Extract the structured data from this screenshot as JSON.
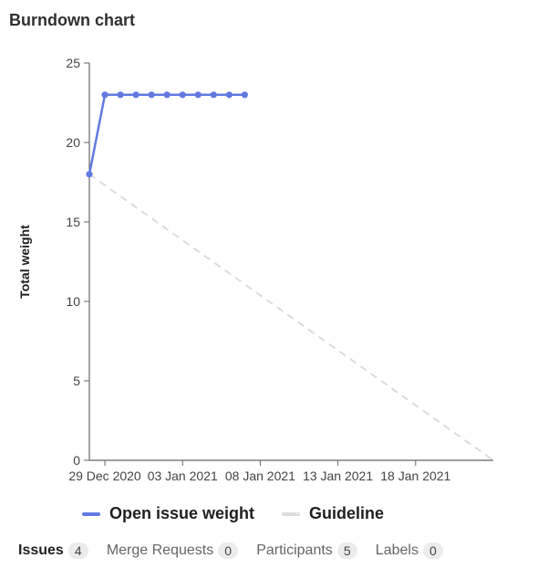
{
  "header": {
    "title": "Burndown chart"
  },
  "colors": {
    "series": "#617ae2",
    "guideline": "#dcdcdc",
    "axis": "#666666"
  },
  "chart_data": {
    "type": "line",
    "title": "Burndown chart",
    "xlabel": "",
    "ylabel": "Total weight",
    "xlim": [
      "2020-12-28",
      "2021-01-23"
    ],
    "ylim": [
      0,
      25
    ],
    "y_ticks": [
      0,
      5,
      10,
      15,
      20,
      25
    ],
    "x_ticks": [
      {
        "date": "2020-12-29",
        "label": "29 Dec 2020"
      },
      {
        "date": "2021-01-03",
        "label": "03 Jan 2021"
      },
      {
        "date": "2021-01-08",
        "label": "08 Jan 2021"
      },
      {
        "date": "2021-01-13",
        "label": "13 Jan 2021"
      },
      {
        "date": "2021-01-18",
        "label": "18 Jan 2021"
      }
    ],
    "grid": false,
    "legend": "bottom",
    "series": [
      {
        "name": "Open issue weight",
        "style": "solid",
        "points": [
          {
            "x": "2020-12-28",
            "y": 18
          },
          {
            "x": "2020-12-29",
            "y": 23
          },
          {
            "x": "2020-12-30",
            "y": 23
          },
          {
            "x": "2020-12-31",
            "y": 23
          },
          {
            "x": "2021-01-01",
            "y": 23
          },
          {
            "x": "2021-01-02",
            "y": 23
          },
          {
            "x": "2021-01-03",
            "y": 23
          },
          {
            "x": "2021-01-04",
            "y": 23
          },
          {
            "x": "2021-01-05",
            "y": 23
          },
          {
            "x": "2021-01-06",
            "y": 23
          },
          {
            "x": "2021-01-07",
            "y": 23
          }
        ]
      },
      {
        "name": "Guideline",
        "style": "dashed",
        "points": [
          {
            "x": "2020-12-28",
            "y": 18
          },
          {
            "x": "2021-01-23",
            "y": 0
          }
        ]
      }
    ]
  },
  "tabs": [
    {
      "label": "Issues",
      "count": "4",
      "active": true
    },
    {
      "label": "Merge Requests",
      "count": "0",
      "active": false
    },
    {
      "label": "Participants",
      "count": "5",
      "active": false
    },
    {
      "label": "Labels",
      "count": "0",
      "active": false
    }
  ]
}
